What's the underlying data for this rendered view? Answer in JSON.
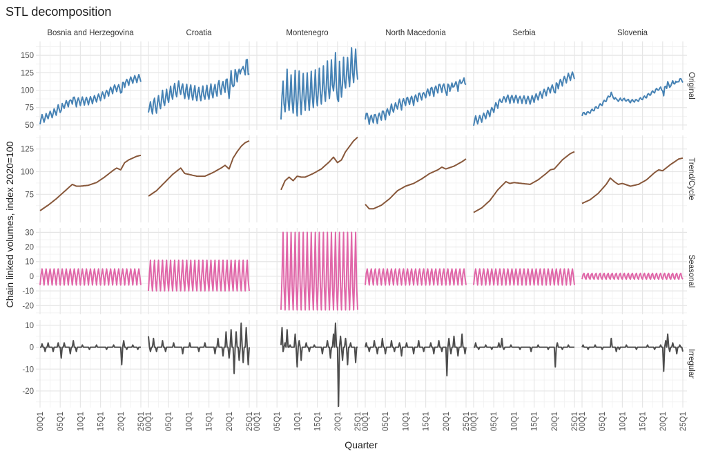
{
  "chart_data": {
    "type": "line",
    "title": "STL decomposition",
    "xlabel": "Quarter",
    "ylabel": "Chain linked volumes, index 2020=100",
    "x_range": [
      "2000Q1",
      "2025Q1"
    ],
    "x_ticks": [
      "00Q1",
      "05Q1",
      "10Q1",
      "15Q1",
      "20Q1",
      "25Q1"
    ],
    "grid": true,
    "facet_rows": [
      {
        "name": "Original",
        "color": "#4682b4",
        "ylim": [
          43,
          170
        ],
        "ticks": [
          50,
          75,
          100,
          125,
          150
        ]
      },
      {
        "name": "Trend/Cycle",
        "color": "#87573a",
        "ylim": [
          44,
          140
        ],
        "ticks": [
          75,
          100,
          125
        ]
      },
      {
        "name": "Seasonal",
        "color": "#e066a8",
        "ylim": [
          -26,
          33
        ],
        "ticks": [
          -20,
          -10,
          0,
          10,
          20,
          30
        ]
      },
      {
        "name": "Irregular",
        "color": "#4d4d4d",
        "ylim": [
          -27.6,
          12.5
        ],
        "ticks": [
          -20,
          -10,
          0,
          10
        ]
      }
    ],
    "countries": [
      {
        "name": "Bosnia and Herzegovina",
        "start": "2000Q1",
        "trend_annual": {
          "2000": 57,
          "2002": 63,
          "2004": 70,
          "2006": 78,
          "2008": 86,
          "2009": 84,
          "2010": 84,
          "2012": 85,
          "2014": 88,
          "2016": 94,
          "2018": 101,
          "2019": 104,
          "2020": 102,
          "2021": 110,
          "2022": 113,
          "2024": 117,
          "2025": 118
        },
        "seasonal_q": [
          -6,
          1,
          5,
          0
        ],
        "irregular": {
          "2000Q3": 1.5,
          "2001Q2": -2,
          "2002Q1": 2,
          "2003Q2": -2,
          "2004Q3": 2,
          "2005Q2": -5,
          "2006Q1": 2,
          "2007Q3": -3,
          "2008Q2": 3,
          "2009Q1": -2,
          "2010Q3": 1,
          "2012Q2": -1,
          "2014Q1": 1,
          "2016Q3": -1,
          "2018Q2": 1,
          "2020Q2": -8,
          "2020Q4": 3,
          "2021Q3": -1,
          "2023Q1": 1,
          "2024Q2": -1
        }
      },
      {
        "name": "Croatia",
        "start": "2000Q1",
        "trend_annual": {
          "2000": 73,
          "2002": 79,
          "2004": 88,
          "2006": 97,
          "2008": 104,
          "2009": 98,
          "2010": 97,
          "2012": 95,
          "2014": 95,
          "2016": 99,
          "2018": 104,
          "2019": 107,
          "2020": 103,
          "2021": 115,
          "2022": 122,
          "2023": 128,
          "2024": 132,
          "2025": 134
        },
        "seasonal_q": [
          -10,
          2,
          11,
          -3
        ],
        "irregular": {
          "2000Q1": 5,
          "2000Q3": -2,
          "2001Q2": 4,
          "2002Q1": -2,
          "2003Q3": 3,
          "2004Q2": -2,
          "2006Q2": 2,
          "2008Q3": -3,
          "2010Q2": 2,
          "2012Q3": -2,
          "2014Q1": 2,
          "2016Q3": -3,
          "2017Q2": 4,
          "2018Q3": -4,
          "2019Q2": 7,
          "2020Q1": -5,
          "2020Q3": 8,
          "2021Q2": -12,
          "2021Q4": 7,
          "2022Q3": -6,
          "2023Q1": 11,
          "2023Q3": -7,
          "2024Q2": 9,
          "2024Q4": -8
        }
      },
      {
        "name": "Montenegro",
        "start": "2006Q1",
        "trend_annual": {
          "2006": 80,
          "2007": 90,
          "2008": 94,
          "2009": 90,
          "2010": 95,
          "2011": 94,
          "2012": 94,
          "2014": 98,
          "2016": 103,
          "2018": 111,
          "2019": 116,
          "2020": 110,
          "2021": 113,
          "2022": 122,
          "2023": 128,
          "2024": 134,
          "2025": 138
        },
        "seasonal_q": [
          -23,
          0,
          30,
          -7
        ],
        "irregular": {
          "2006Q1": 1,
          "2006Q2": 9,
          "2006Q3": -2,
          "2007Q1": 2,
          "2007Q3": 8,
          "2008Q2": 1,
          "2009Q3": 6,
          "2010Q1": -9,
          "2010Q3": 3,
          "2011Q1": -6,
          "2012Q2": 2,
          "2013Q1": -2,
          "2014Q2": 1,
          "2016Q2": -3,
          "2017Q3": 3,
          "2018Q2": -5,
          "2019Q1": 6,
          "2019Q3": 11,
          "2020Q2": -27,
          "2020Q4": 5,
          "2021Q2": -6,
          "2022Q1": 4,
          "2022Q3": -8,
          "2023Q2": 2,
          "2024Q3": -7,
          "2025Q1": 0
        }
      },
      {
        "name": "North Macedonia",
        "start": "2000Q1",
        "trend_annual": {
          "2000": 64,
          "2001": 59,
          "2002": 59,
          "2004": 63,
          "2006": 70,
          "2008": 79,
          "2010": 84,
          "2012": 87,
          "2014": 92,
          "2016": 98,
          "2018": 102,
          "2019": 105,
          "2020": 103,
          "2022": 106,
          "2024": 111,
          "2025": 114
        },
        "seasonal_q": [
          -6,
          2,
          5,
          -1
        ],
        "irregular": {
          "2000Q2": 2,
          "2001Q1": -2,
          "2002Q2": 3,
          "2003Q1": -3,
          "2004Q2": 4,
          "2005Q1": -3,
          "2006Q3": 3,
          "2007Q2": -2,
          "2008Q3": 2,
          "2009Q1": -4,
          "2010Q2": 2,
          "2012Q1": -3,
          "2013Q2": 3,
          "2014Q3": -2,
          "2016Q2": 2,
          "2017Q1": -3,
          "2018Q2": 3,
          "2019Q1": -2,
          "2020Q2": -13,
          "2020Q4": 4,
          "2021Q2": -3,
          "2022Q1": 5,
          "2023Q1": -4,
          "2024Q1": 6,
          "2024Q4": -3
        }
      },
      {
        "name": "Serbia",
        "start": "2000Q1",
        "trend_annual": {
          "2000": 55,
          "2002": 60,
          "2004": 68,
          "2006": 80,
          "2008": 89,
          "2009": 87,
          "2010": 88,
          "2012": 87,
          "2014": 86,
          "2016": 91,
          "2018": 98,
          "2019": 102,
          "2020": 103,
          "2022": 113,
          "2024": 120,
          "2025": 122
        },
        "seasonal_q": [
          -6,
          1,
          5,
          0
        ],
        "irregular": {
          "2000Q3": 2,
          "2001Q2": -1,
          "2003Q1": 1,
          "2004Q3": -1,
          "2006Q2": 2,
          "2007Q1": 4,
          "2007Q3": -1,
          "2009Q2": 1,
          "2011Q3": -1,
          "2014Q2": -2,
          "2016Q1": 1,
          "2018Q3": -1,
          "2020Q2": -9,
          "2020Q4": 2,
          "2022Q1": -1,
          "2023Q3": 1
        }
      },
      {
        "name": "Slovenia",
        "start": "2000Q1",
        "trend_annual": {
          "2000": 65,
          "2002": 69,
          "2004": 76,
          "2006": 86,
          "2007": 93,
          "2008": 89,
          "2009": 86,
          "2010": 87,
          "2012": 84,
          "2014": 86,
          "2016": 91,
          "2018": 99,
          "2019": 102,
          "2020": 101,
          "2022": 108,
          "2024": 114,
          "2025": 115
        },
        "seasonal_q": [
          -2,
          1,
          2,
          -1
        ],
        "irregular": {
          "2000Q2": 1,
          "2001Q3": -1,
          "2003Q2": 1,
          "2005Q1": -1,
          "2007Q2": 4,
          "2008Q3": -2,
          "2009Q2": -1,
          "2011Q1": 1,
          "2013Q3": -1,
          "2016Q2": 1,
          "2018Q1": -1,
          "2019Q3": 1,
          "2020Q2": -11,
          "2020Q4": 3,
          "2021Q2": 6,
          "2021Q4": -2,
          "2022Q3": 2,
          "2023Q3": -3,
          "2024Q2": 1,
          "2025Q1": -2
        }
      }
    ]
  }
}
